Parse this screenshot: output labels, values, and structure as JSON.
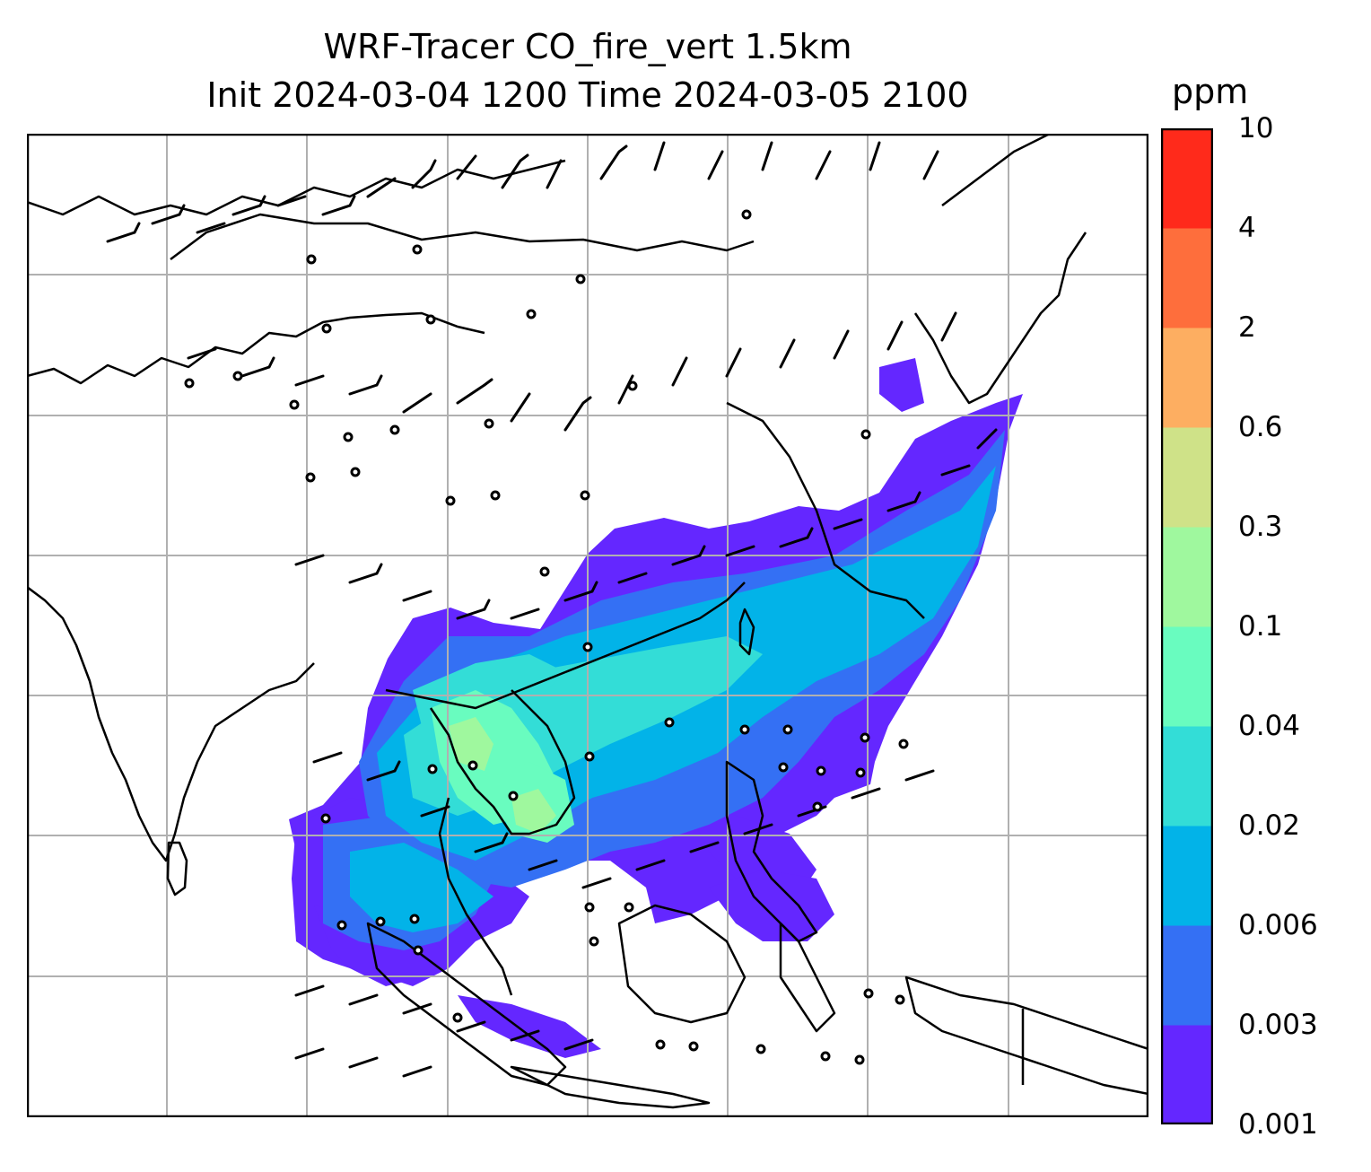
{
  "title": {
    "line1": "WRF-Tracer CO_fire_vert 1.5km",
    "line2": "Init 2024-03-04 1200 Time 2024-03-05 2100"
  },
  "colorbar": {
    "unit": "ppm",
    "levels": [
      "0.001",
      "0.003",
      "0.006",
      "0.02",
      "0.04",
      "0.1",
      "0.3",
      "0.6",
      "2",
      "4",
      "10"
    ],
    "colors": [
      "#6427ff",
      "#3470f4",
      "#02b3e8",
      "#33ddd7",
      "#69fcbf",
      "#9ff89e",
      "#cfe288",
      "#fdae61",
      "#fe6e3c",
      "#ff2a1b"
    ]
  },
  "map": {
    "field_colors": {
      "plume_outer": "#6427ff",
      "plume_mid": "#3470f4",
      "plume_core": "#02b3e8",
      "plume_inner": "#33ddd7",
      "plume_hot": "#69fcbf",
      "plume_max": "#9ff89e"
    },
    "coastline_color": "#000000",
    "grid_color": "#b0b0b0",
    "wind_barb_color": "#000000"
  }
}
